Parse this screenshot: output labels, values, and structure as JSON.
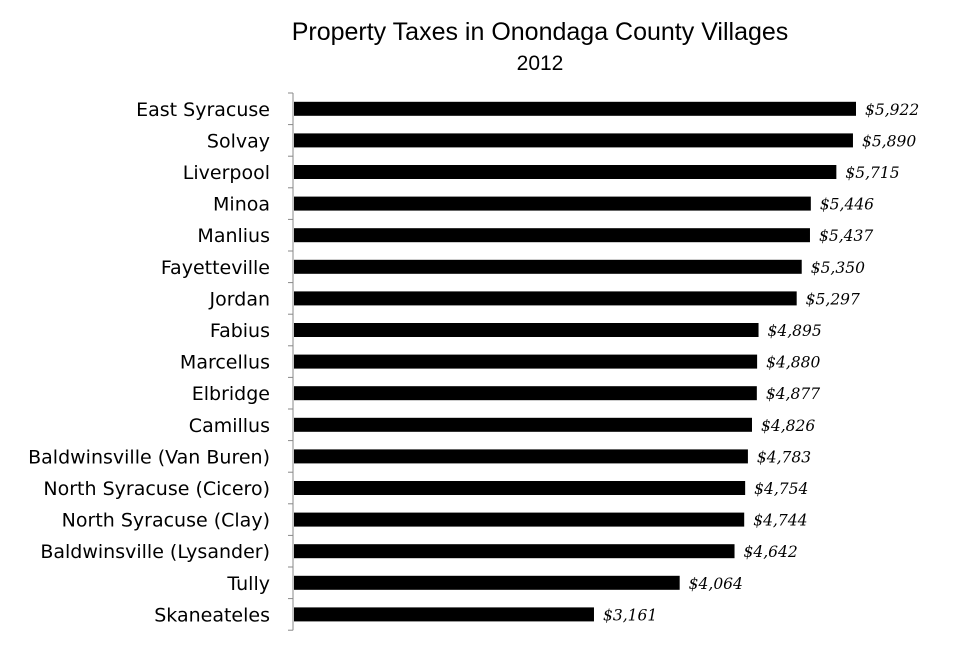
{
  "chart_data": {
    "type": "bar",
    "orientation": "horizontal",
    "title": "Property Taxes in Onondaga County Villages",
    "subtitle": "2012",
    "categories": [
      "East Syracuse",
      "Solvay",
      "Liverpool",
      "Minoa",
      "Manlius",
      "Fayetteville",
      "Jordan",
      "Fabius",
      "Marcellus",
      "Elbridge",
      "Camillus",
      "Baldwinsville (Van Buren)",
      "North Syracuse (Cicero)",
      "North Syracuse (Clay)",
      "Baldwinsville (Lysander)",
      "Tully",
      "Skaneateles"
    ],
    "values": [
      5922,
      5890,
      5715,
      5446,
      5437,
      5350,
      5297,
      4895,
      4880,
      4877,
      4826,
      4783,
      4754,
      4744,
      4642,
      4064,
      3161
    ],
    "value_labels": [
      "$5,922",
      "$5,890",
      "$5,715",
      "$5,446",
      "$5,437",
      "$5,350",
      "$5,297",
      "$4,895",
      "$4,880",
      "$4,877",
      "$4,826",
      "$4,783",
      "$4,754",
      "$4,744",
      "$4,642",
      "$4,064",
      "$3,161"
    ],
    "xlim": [
      0,
      6000
    ],
    "grid": false,
    "bar_color": "#000000"
  }
}
